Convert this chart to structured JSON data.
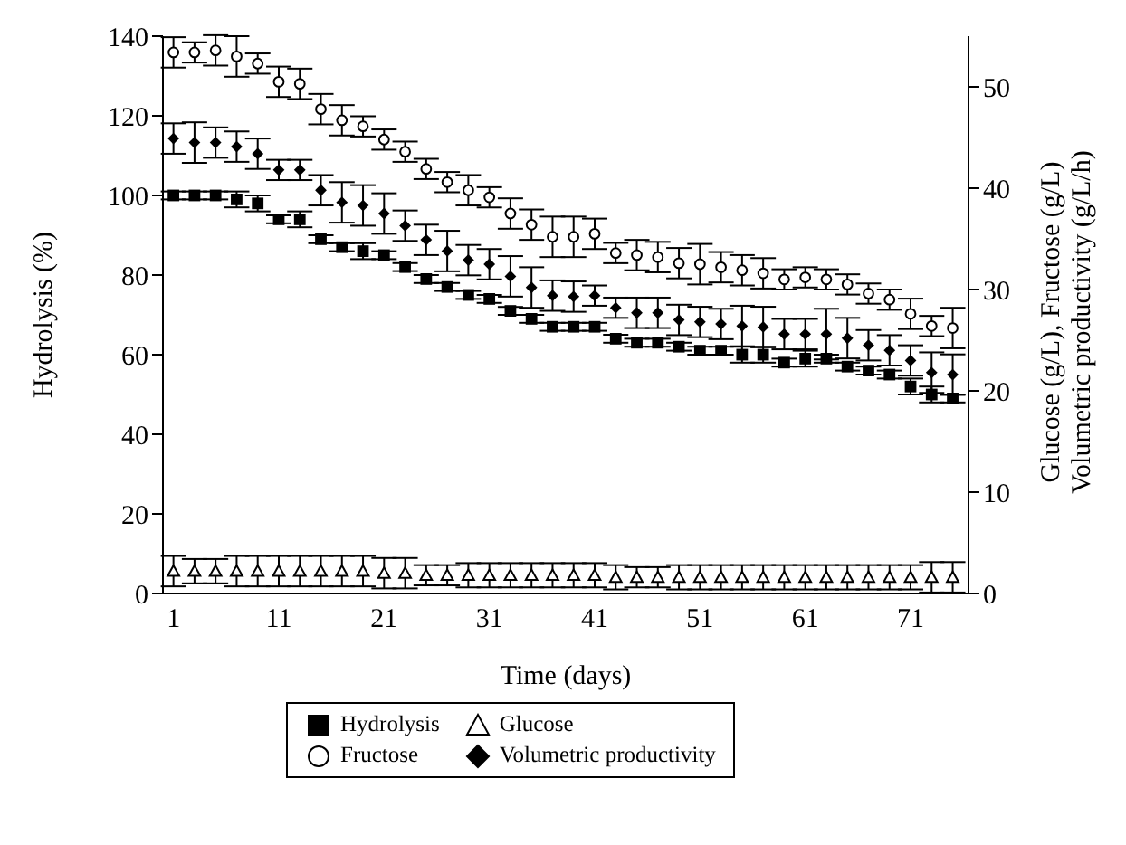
{
  "chart_data": {
    "type": "scatter",
    "xlabel": "Time (days)",
    "ylabel": "Hydrolysis  (%)",
    "y2label": "Glucose (g/L), Fructose (g/L) Volumetric productivity (g/L/h)",
    "x": [
      1,
      3,
      5,
      7,
      9,
      11,
      13,
      15,
      17,
      19,
      21,
      23,
      25,
      27,
      29,
      31,
      33,
      35,
      37,
      39,
      41,
      43,
      45,
      47,
      49,
      51,
      53,
      55,
      57,
      59,
      61,
      63,
      65,
      67,
      69,
      71,
      73,
      75
    ],
    "xlim": [
      0,
      76.5
    ],
    "xticks": [
      1,
      11,
      21,
      31,
      41,
      51,
      61,
      71
    ],
    "ylim": [
      0,
      140
    ],
    "yticks": [
      0,
      20,
      40,
      60,
      80,
      100,
      120,
      140
    ],
    "y2lim": [
      0,
      55
    ],
    "y2ticks": [
      0,
      10,
      20,
      30,
      40,
      50
    ],
    "legend": "bottom",
    "series": [
      {
        "name": "Hydrolysis",
        "color": "#000000",
        "marker": "square",
        "values": [
          100,
          100,
          100,
          99,
          98,
          94,
          94,
          89,
          87,
          86,
          85,
          82,
          79,
          77,
          75,
          74,
          71,
          69,
          67,
          67,
          67,
          64,
          63,
          63,
          62,
          61,
          61,
          60,
          60,
          58,
          59,
          59,
          57,
          56,
          55,
          52,
          50,
          49
        ],
        "errors": [
          1,
          1,
          1,
          2,
          2,
          1,
          2,
          1,
          1,
          2,
          1,
          1,
          1,
          1,
          1,
          1,
          1,
          1,
          1,
          1,
          1,
          1,
          1,
          1,
          1,
          1,
          1,
          2,
          2,
          1,
          2,
          1,
          1,
          1,
          1,
          2,
          2,
          1
        ]
      },
      {
        "name": "Fructose",
        "color": "#000000",
        "marker": "circle",
        "axis": "y2",
        "values": [
          53.4,
          53.4,
          53.6,
          53,
          52.3,
          50.5,
          50.3,
          47.8,
          46.7,
          46.1,
          44.8,
          43.6,
          41.9,
          40.6,
          39.8,
          39.1,
          37.5,
          36.4,
          35.2,
          35.2,
          35.5,
          33.6,
          33.4,
          33.2,
          32.6,
          32.5,
          32.2,
          31.9,
          31.6,
          31,
          31.2,
          31,
          30.5,
          29.6,
          29,
          27.6,
          26.4,
          26.2
        ],
        "errors": [
          1.5,
          1,
          1.5,
          2,
          1,
          1.5,
          1.5,
          1.5,
          1.5,
          1,
          1,
          1,
          1,
          1,
          1.5,
          1,
          1.5,
          1.5,
          2,
          2,
          1.5,
          1,
          1.5,
          1.5,
          1.5,
          2,
          1.5,
          1.5,
          1.5,
          1,
          1,
          1,
          1,
          1,
          1,
          1.5,
          1,
          2
        ]
      },
      {
        "name": "Glucose",
        "color": "#000000",
        "marker": "triangle",
        "axis": "y2",
        "values": [
          2.2,
          2.2,
          2.2,
          2.2,
          2.2,
          2.2,
          2.2,
          2.2,
          2.2,
          2.2,
          2,
          2,
          1.8,
          1.8,
          1.8,
          1.8,
          1.8,
          1.8,
          1.8,
          1.8,
          1.8,
          1.6,
          1.6,
          1.6,
          1.6,
          1.6,
          1.6,
          1.6,
          1.6,
          1.6,
          1.6,
          1.6,
          1.6,
          1.6,
          1.6,
          1.6,
          1.6,
          1.6
        ],
        "errors": [
          1.5,
          1.2,
          1.2,
          1.5,
          1.5,
          1.5,
          1.5,
          1.5,
          1.5,
          1.5,
          1.5,
          1.5,
          1,
          1,
          1.2,
          1.2,
          1.2,
          1.2,
          1.2,
          1.2,
          1.2,
          1.2,
          1,
          1,
          1.2,
          1.2,
          1.2,
          1.2,
          1.2,
          1.2,
          1.2,
          1.2,
          1.2,
          1.2,
          1.2,
          1.2,
          1.5,
          1.5
        ]
      },
      {
        "name": "Volumetric productivity",
        "color": "#000000",
        "marker": "diamond",
        "axis": "y2",
        "values": [
          44.9,
          44.5,
          44.5,
          44.1,
          43.4,
          41.8,
          41.8,
          39.8,
          38.6,
          38.3,
          37.5,
          36.3,
          34.9,
          33.8,
          32.9,
          32.5,
          31.3,
          30.2,
          29.4,
          29.3,
          29.4,
          28.2,
          27.7,
          27.7,
          27,
          26.8,
          26.6,
          26.4,
          26.3,
          25.6,
          25.6,
          25.6,
          25.2,
          24.5,
          24,
          23,
          21.8,
          21.6
        ],
        "errors": [
          1.5,
          2,
          1.5,
          1.5,
          1.5,
          1,
          1,
          1.5,
          2,
          2,
          2,
          1.5,
          1.5,
          2,
          1.5,
          1.5,
          2,
          2,
          1.5,
          1.5,
          1,
          1,
          1.5,
          1.5,
          1.5,
          1.5,
          1.5,
          2,
          2,
          1.5,
          1.5,
          2.5,
          2,
          1.5,
          1.5,
          1.5,
          2,
          2
        ]
      }
    ]
  }
}
